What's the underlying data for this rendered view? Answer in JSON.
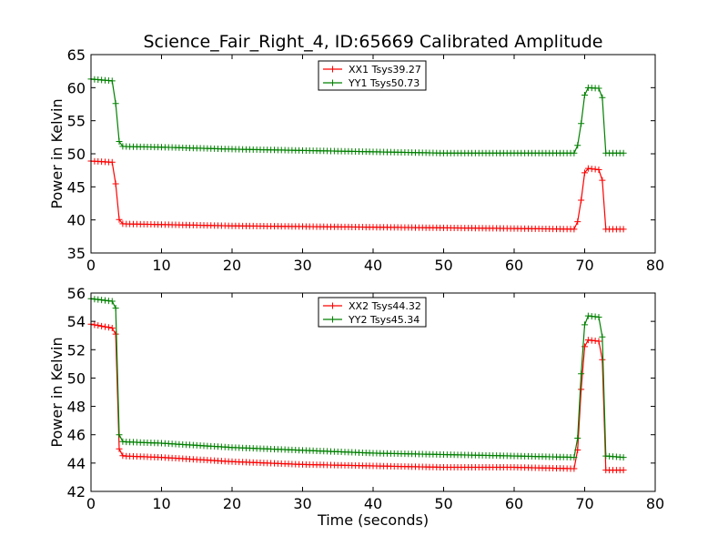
{
  "title": "Science_Fair_Right_4, ID:65669 Calibrated Amplitude",
  "colors": {
    "red": "#ff0000",
    "green": "#008000"
  },
  "chart_data": [
    {
      "type": "line",
      "title": "Science_Fair_Right_4, ID:65669 Calibrated Amplitude",
      "xlabel": "",
      "ylabel": "Power in Kelvin",
      "xlim": [
        0,
        80
      ],
      "ylim": [
        35,
        65
      ],
      "xticks": [
        0,
        10,
        20,
        30,
        40,
        50,
        60,
        70,
        80
      ],
      "yticks": [
        35,
        40,
        45,
        50,
        55,
        60,
        65
      ],
      "legend_position": "top-center",
      "series": [
        {
          "name": "XX1 Tsys39.27",
          "color": "#ff0000",
          "x": [
            0,
            3.3,
            3.8,
            4.2,
            4.6,
            10,
            20,
            30,
            40,
            50,
            60,
            68.8,
            69.4,
            69.9,
            70.3,
            72.0,
            72.5,
            73.0,
            75.5
          ],
          "y": [
            48.9,
            48.7,
            40.6,
            39.5,
            39.4,
            39.3,
            39.1,
            39.0,
            38.9,
            38.8,
            38.7,
            38.6,
            42.0,
            46.9,
            47.8,
            47.6,
            46.0,
            38.6,
            38.6
          ]
        },
        {
          "name": "YY1 Tsys50.73",
          "color": "#008000",
          "x": [
            0,
            3.3,
            3.8,
            4.2,
            4.6,
            10,
            20,
            30,
            40,
            50,
            60,
            68.8,
            69.4,
            69.9,
            70.3,
            72.0,
            72.5,
            73.0,
            75.5
          ],
          "y": [
            61.3,
            61.0,
            52.5,
            51.2,
            51.1,
            51.0,
            50.7,
            50.5,
            50.3,
            50.1,
            50.1,
            50.1,
            53.6,
            58.5,
            60.0,
            59.9,
            58.5,
            50.1,
            50.1
          ]
        }
      ]
    },
    {
      "type": "line",
      "title": "",
      "xlabel": "Time (seconds)",
      "ylabel": "Power in Kelvin",
      "xlim": [
        0,
        80
      ],
      "ylim": [
        42,
        56
      ],
      "xticks": [
        0,
        10,
        20,
        30,
        40,
        50,
        60,
        70,
        80
      ],
      "yticks": [
        42,
        44,
        46,
        48,
        50,
        52,
        54,
        56
      ],
      "legend_position": "top-center",
      "series": [
        {
          "name": "XX2 Tsys44.32",
          "color": "#ff0000",
          "x": [
            0,
            3.3,
            3.6,
            3.8,
            4.1,
            4.6,
            10,
            20,
            30,
            40,
            50,
            60,
            68.8,
            69.3,
            69.7,
            70.2,
            72.0,
            72.5,
            73.0,
            75.5
          ],
          "y": [
            53.8,
            53.5,
            52.9,
            45.8,
            44.6,
            44.5,
            44.4,
            44.1,
            43.9,
            43.8,
            43.7,
            43.7,
            43.6,
            46.9,
            51.5,
            52.7,
            52.6,
            51.3,
            43.5,
            43.5
          ]
        },
        {
          "name": "YY2 Tsys45.34",
          "color": "#008000",
          "x": [
            0,
            3.3,
            3.6,
            3.8,
            4.1,
            4.6,
            10,
            20,
            30,
            40,
            50,
            60,
            68.8,
            69.3,
            69.7,
            70.2,
            72.0,
            72.5,
            73.0,
            75.5
          ],
          "y": [
            55.6,
            55.4,
            54.7,
            46.8,
            45.6,
            45.5,
            45.4,
            45.1,
            44.9,
            44.7,
            44.6,
            44.5,
            44.4,
            47.8,
            52.8,
            54.4,
            54.3,
            52.9,
            44.5,
            44.4
          ]
        }
      ]
    }
  ]
}
